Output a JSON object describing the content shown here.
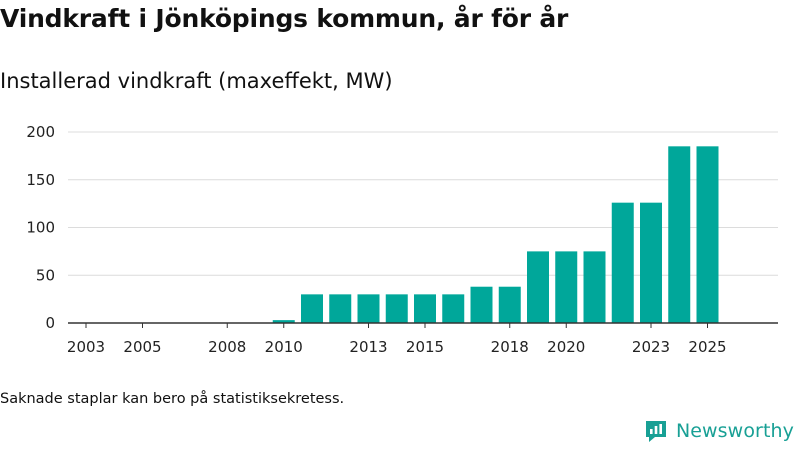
{
  "header": {
    "title": "Vindkraft i Jönköpings kommun, år för år",
    "subtitle": "Installerad vindkraft (maxeffekt, MW)"
  },
  "footer": {
    "note": "Saknade staplar kan bero på statistiksekretess.",
    "brand": "Newsworthy",
    "brand_icon": "newsworthy-logo-icon"
  },
  "colors": {
    "bar": "#00a79a",
    "brand": "#18a095",
    "grid": "#dcdcdc",
    "axis": "#333333"
  },
  "chart_data": {
    "type": "bar",
    "title": "Vindkraft i Jönköpings kommun, år för år",
    "subtitle": "Installerad vindkraft (maxeffekt, MW)",
    "xlabel": "",
    "ylabel": "",
    "categories": [
      "2003",
      "2004",
      "2005",
      "2006",
      "2007",
      "2008",
      "2009",
      "2010",
      "2011",
      "2012",
      "2013",
      "2014",
      "2015",
      "2016",
      "2017",
      "2018",
      "2019",
      "2020",
      "2021",
      "2022",
      "2023",
      "2024",
      "2025"
    ],
    "values": [
      0,
      0,
      0,
      0,
      0,
      0,
      0,
      3,
      30,
      30,
      30,
      30,
      30,
      30,
      38,
      38,
      75,
      75,
      75,
      126,
      126,
      185,
      185
    ],
    "x_tick_labels": [
      "2003",
      "2005",
      "2008",
      "2010",
      "2013",
      "2015",
      "2018",
      "2020",
      "2023",
      "2025"
    ],
    "y_ticks": [
      0,
      50,
      100,
      150,
      200
    ],
    "ylim": [
      0,
      210
    ],
    "grid": true
  }
}
